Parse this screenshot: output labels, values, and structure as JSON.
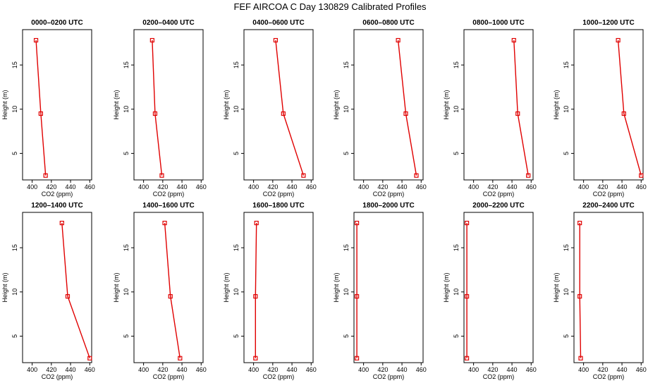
{
  "title": "FEF AIRCOA C  Day 130829  Calibrated Profiles",
  "chart_data": {
    "type": "line",
    "xlabel": "CO2 (ppm)",
    "ylabel": "Height (m)",
    "xlim": [
      390,
      462
    ],
    "ylim": [
      2,
      19
    ],
    "xticks": [
      "400",
      "420",
      "440",
      "460"
    ],
    "yticks": [
      "5",
      "10",
      "15"
    ],
    "heights": [
      2.5,
      9.5,
      17.8
    ],
    "line_color": "#e00000",
    "panels": [
      {
        "title": "0000–0200 UTC",
        "values": [
          414,
          409,
          404
        ]
      },
      {
        "title": "0200–0400 UTC",
        "values": [
          419,
          412,
          409
        ]
      },
      {
        "title": "0400–0600 UTC",
        "values": [
          452,
          431,
          423
        ]
      },
      {
        "title": "0600–0800 UTC",
        "values": [
          455,
          444,
          436
        ]
      },
      {
        "title": "0800–1000 UTC",
        "values": [
          457,
          446,
          442
        ]
      },
      {
        "title": "1000–1200 UTC",
        "values": [
          460,
          442,
          436
        ]
      },
      {
        "title": "1200–1400 UTC",
        "values": [
          460,
          437,
          431
        ]
      },
      {
        "title": "1400–1600 UTC",
        "values": [
          438,
          428,
          422
        ]
      },
      {
        "title": "1600–1800 UTC",
        "values": [
          402,
          402,
          403
        ]
      },
      {
        "title": "1800–2000 UTC",
        "values": [
          393,
          393,
          393
        ]
      },
      {
        "title": "2000–2200 UTC",
        "values": [
          393,
          393,
          393
        ]
      },
      {
        "title": "2200–2400 UTC",
        "values": [
          397,
          396,
          396
        ]
      }
    ]
  }
}
